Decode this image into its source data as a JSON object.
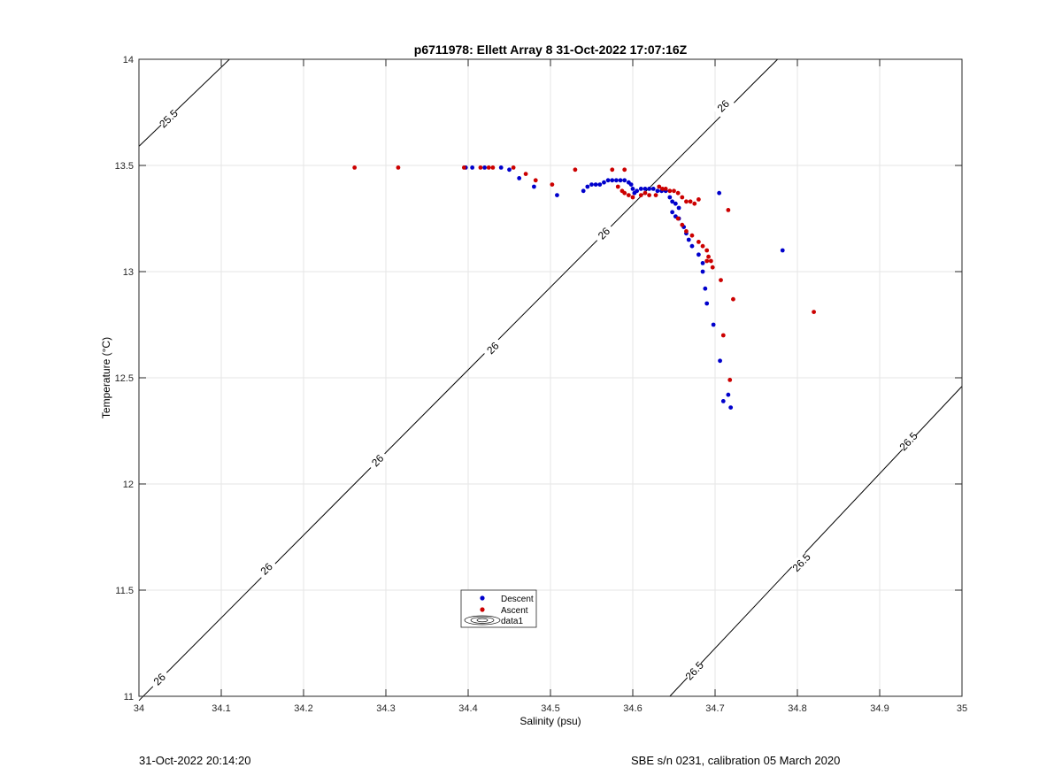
{
  "chart_data": {
    "type": "scatter",
    "title": "p6711978: Ellett Array 8 31-Oct-2022 17:07:16Z",
    "xlabel": "Salinity (psu)",
    "ylabel": "Temperature (°C)",
    "xlim": [
      34,
      35
    ],
    "ylim": [
      11,
      14
    ],
    "xticks": [
      "34",
      "34.1",
      "34.2",
      "34.3",
      "34.4",
      "34.5",
      "34.6",
      "34.7",
      "34.8",
      "34.9",
      "35"
    ],
    "yticks": [
      "11",
      "11.5",
      "12",
      "12.5",
      "13",
      "13.5",
      "14"
    ],
    "grid": true,
    "legend": {
      "placement": "lower-center",
      "entries": [
        "Descent",
        "Ascent",
        "data1"
      ]
    },
    "colors": {
      "descent": "#0000cc",
      "ascent": "#cc0000",
      "contour": "#000000",
      "grid": "#e6e6e6"
    },
    "contours": [
      {
        "level": "25.5",
        "points": [
          [
            34.0,
            13.59
          ],
          [
            34.11,
            14.0
          ]
        ],
        "labels": [
          {
            "x": 34.036,
            "y": 13.72
          }
        ]
      },
      {
        "level": "26",
        "points": [
          [
            34.0,
            10.98
          ],
          [
            34.75,
            13.9
          ],
          [
            34.776,
            14.0
          ]
        ],
        "labels": [
          {
            "x": 34.025,
            "y": 11.08
          },
          {
            "x": 34.155,
            "y": 11.6
          },
          {
            "x": 34.29,
            "y": 12.11
          },
          {
            "x": 34.43,
            "y": 12.64
          },
          {
            "x": 34.565,
            "y": 13.18
          },
          {
            "x": 34.71,
            "y": 13.78
          }
        ]
      },
      {
        "level": "26.5",
        "points": [
          [
            34.645,
            11.0
          ],
          [
            35.0,
            12.46
          ]
        ],
        "labels": [
          {
            "x": 34.675,
            "y": 11.12
          },
          {
            "x": 34.805,
            "y": 11.63
          },
          {
            "x": 34.935,
            "y": 12.2
          }
        ]
      }
    ],
    "series": [
      {
        "name": "Descent",
        "points": [
          [
            34.397,
            13.49
          ],
          [
            34.405,
            13.49
          ],
          [
            34.42,
            13.49
          ],
          [
            34.44,
            13.49
          ],
          [
            34.45,
            13.48
          ],
          [
            34.462,
            13.44
          ],
          [
            34.48,
            13.4
          ],
          [
            34.508,
            13.36
          ],
          [
            34.54,
            13.38
          ],
          [
            34.545,
            13.4
          ],
          [
            34.55,
            13.41
          ],
          [
            34.555,
            13.41
          ],
          [
            34.56,
            13.41
          ],
          [
            34.565,
            13.42
          ],
          [
            34.57,
            13.43
          ],
          [
            34.575,
            13.43
          ],
          [
            34.58,
            13.43
          ],
          [
            34.585,
            13.43
          ],
          [
            34.59,
            13.43
          ],
          [
            34.595,
            13.42
          ],
          [
            34.598,
            13.41
          ],
          [
            34.6,
            13.39
          ],
          [
            34.602,
            13.37
          ],
          [
            34.605,
            13.38
          ],
          [
            34.61,
            13.39
          ],
          [
            34.615,
            13.39
          ],
          [
            34.62,
            13.39
          ],
          [
            34.625,
            13.39
          ],
          [
            34.63,
            13.38
          ],
          [
            34.635,
            13.38
          ],
          [
            34.64,
            13.38
          ],
          [
            34.645,
            13.35
          ],
          [
            34.648,
            13.33
          ],
          [
            34.652,
            13.32
          ],
          [
            34.656,
            13.3
          ],
          [
            34.648,
            13.28
          ],
          [
            34.652,
            13.26
          ],
          [
            34.656,
            13.25
          ],
          [
            34.662,
            13.21
          ],
          [
            34.665,
            13.18
          ],
          [
            34.668,
            13.15
          ],
          [
            34.672,
            13.12
          ],
          [
            34.68,
            13.08
          ],
          [
            34.685,
            13.04
          ],
          [
            34.685,
            13.0
          ],
          [
            34.688,
            12.92
          ],
          [
            34.69,
            12.85
          ],
          [
            34.698,
            12.75
          ],
          [
            34.706,
            12.58
          ],
          [
            34.71,
            12.39
          ],
          [
            34.716,
            12.42
          ],
          [
            34.719,
            12.36
          ],
          [
            34.705,
            13.37
          ],
          [
            34.782,
            13.1
          ]
        ]
      },
      {
        "name": "Ascent",
        "points": [
          [
            34.262,
            13.49
          ],
          [
            34.315,
            13.49
          ],
          [
            34.395,
            13.49
          ],
          [
            34.415,
            13.49
          ],
          [
            34.425,
            13.49
          ],
          [
            34.43,
            13.49
          ],
          [
            34.455,
            13.49
          ],
          [
            34.47,
            13.46
          ],
          [
            34.482,
            13.43
          ],
          [
            34.502,
            13.41
          ],
          [
            34.53,
            13.48
          ],
          [
            34.575,
            13.48
          ],
          [
            34.59,
            13.48
          ],
          [
            34.582,
            13.4
          ],
          [
            34.587,
            13.38
          ],
          [
            34.59,
            13.37
          ],
          [
            34.595,
            13.36
          ],
          [
            34.6,
            13.35
          ],
          [
            34.61,
            13.36
          ],
          [
            34.615,
            13.37
          ],
          [
            34.62,
            13.36
          ],
          [
            34.628,
            13.36
          ],
          [
            34.632,
            13.4
          ],
          [
            34.636,
            13.39
          ],
          [
            34.64,
            13.39
          ],
          [
            34.645,
            13.38
          ],
          [
            34.65,
            13.38
          ],
          [
            34.655,
            13.37
          ],
          [
            34.66,
            13.35
          ],
          [
            34.665,
            13.33
          ],
          [
            34.67,
            13.33
          ],
          [
            34.675,
            13.32
          ],
          [
            34.68,
            13.34
          ],
          [
            34.655,
            13.25
          ],
          [
            34.66,
            13.22
          ],
          [
            34.665,
            13.19
          ],
          [
            34.672,
            13.17
          ],
          [
            34.68,
            13.14
          ],
          [
            34.685,
            13.12
          ],
          [
            34.69,
            13.1
          ],
          [
            34.692,
            13.07
          ],
          [
            34.695,
            13.05
          ],
          [
            34.69,
            13.05
          ],
          [
            34.697,
            13.02
          ],
          [
            34.707,
            12.96
          ],
          [
            34.71,
            12.7
          ],
          [
            34.718,
            12.49
          ],
          [
            34.716,
            13.29
          ],
          [
            34.722,
            12.87
          ],
          [
            34.82,
            12.81
          ]
        ]
      }
    ]
  },
  "footer": {
    "left": "31-Oct-2022 20:14:20",
    "right": "SBE s/n 0231, calibration 05 March 2020"
  }
}
